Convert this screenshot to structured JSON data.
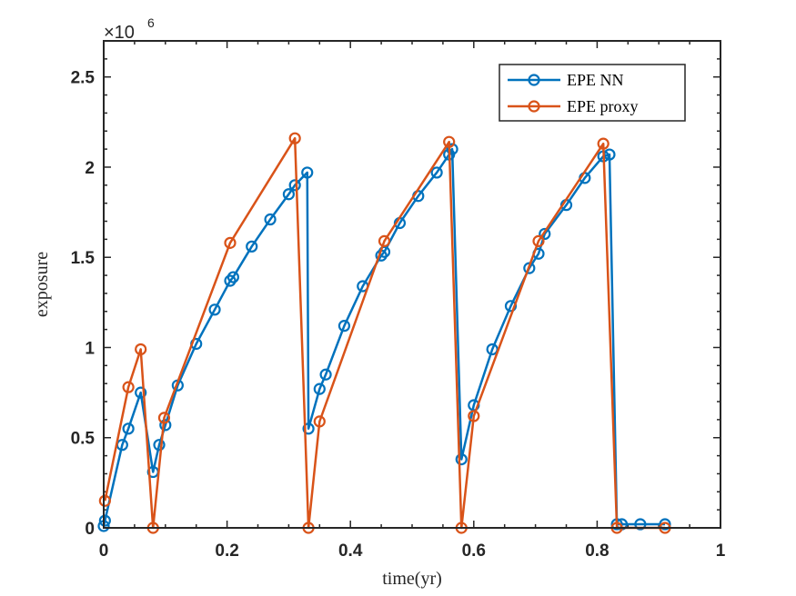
{
  "chart_data": {
    "type": "line",
    "title": "",
    "xlabel": "time(yr)",
    "ylabel": "exposure",
    "y_scale_label": "×10",
    "y_scale_exponent": "6",
    "xlim": [
      0,
      1
    ],
    "ylim": [
      0,
      2.7
    ],
    "x_ticks": [
      0,
      0.2,
      0.4,
      0.6,
      0.8,
      1
    ],
    "x_tick_labels": [
      "0",
      "0.2",
      "0.4",
      "0.6",
      "0.8",
      "1"
    ],
    "y_ticks": [
      0,
      0.5,
      1,
      1.5,
      2,
      2.5
    ],
    "y_tick_labels": [
      "0",
      "0.5",
      "1",
      "1.5",
      "2",
      "2.5"
    ],
    "legend_position": "top-right",
    "series": [
      {
        "name": "EPE NN",
        "color": "#0072BD",
        "x": [
          0,
          0.002,
          0.03,
          0.04,
          0.06,
          0.08,
          0.09,
          0.1,
          0.12,
          0.15,
          0.18,
          0.205,
          0.21,
          0.24,
          0.27,
          0.3,
          0.31,
          0.33,
          0.332,
          0.35,
          0.36,
          0.39,
          0.42,
          0.45,
          0.455,
          0.48,
          0.51,
          0.54,
          0.56,
          0.565,
          0.58,
          0.6,
          0.63,
          0.66,
          0.69,
          0.705,
          0.715,
          0.75,
          0.78,
          0.81,
          0.82,
          0.832,
          0.84,
          0.87,
          0.91
        ],
        "values": [
          0.01,
          0.04,
          0.46,
          0.55,
          0.75,
          0.31,
          0.46,
          0.57,
          0.79,
          1.02,
          1.21,
          1.37,
          1.39,
          1.56,
          1.71,
          1.85,
          1.9,
          1.97,
          0.55,
          0.77,
          0.85,
          1.12,
          1.34,
          1.51,
          1.53,
          1.69,
          1.84,
          1.97,
          2.07,
          2.1,
          0.38,
          0.68,
          0.99,
          1.23,
          1.44,
          1.52,
          1.63,
          1.79,
          1.94,
          2.06,
          2.07,
          0.02,
          0.02,
          0.02,
          0.02
        ]
      },
      {
        "name": "EPE proxy",
        "color": "#D95319",
        "x": [
          0.002,
          0.04,
          0.06,
          0.08,
          0.098,
          0.205,
          0.31,
          0.332,
          0.35,
          0.455,
          0.56,
          0.58,
          0.6,
          0.705,
          0.81,
          0.832,
          0.91
        ],
        "values": [
          0.15,
          0.78,
          0.99,
          0.0,
          0.61,
          1.58,
          2.16,
          0.0,
          0.59,
          1.59,
          2.14,
          0.0,
          0.62,
          1.59,
          2.13,
          0.0,
          0.0
        ]
      }
    ]
  }
}
